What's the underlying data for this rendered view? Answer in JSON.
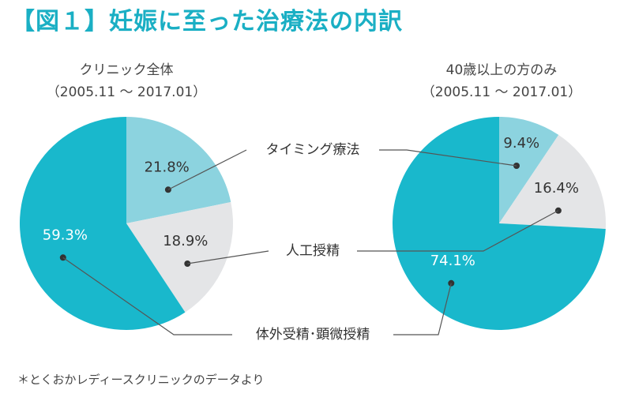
{
  "title": "【図１】妊娠に至った治療法の内訳",
  "footnote": "＊とくおかレディースクリニックのデータより",
  "colors": {
    "title": "#1aafc4",
    "timing": "#8cd3df",
    "artificial_insemination": "#e4e5e7",
    "ivf_icsi": "#19b8cc",
    "leader": "#555555"
  },
  "chart_data": [
    {
      "type": "pie",
      "title": "クリニック全体",
      "subtitle": "（2005.11 〜 2017.01）",
      "slices": [
        {
          "label": "タイミング療法",
          "value": 21.8,
          "display": "21.8%"
        },
        {
          "label": "人工授精",
          "value": 18.9,
          "display": "18.9%"
        },
        {
          "label": "体外受精･顕微授精",
          "value": 59.3,
          "display": "59.3%"
        }
      ]
    },
    {
      "type": "pie",
      "title": "40歳以上の方のみ",
      "subtitle": "（2005.11 〜 2017.01）",
      "slices": [
        {
          "label": "タイミング療法",
          "value": 9.4,
          "display": "9.4%"
        },
        {
          "label": "人工授精",
          "value": 16.4,
          "display": "16.4%"
        },
        {
          "label": "体外受精･顕微授精",
          "value": 74.1,
          "display": "74.1%"
        }
      ]
    }
  ]
}
